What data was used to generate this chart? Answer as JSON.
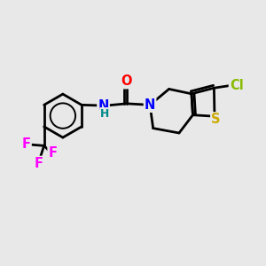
{
  "bg_color": "#e8e8e8",
  "bond_color": "#000000",
  "bond_width": 2.0,
  "atom_colors": {
    "O": "#ff0000",
    "N": "#0000ff",
    "S": "#ccaa00",
    "F": "#ff00ff",
    "Cl": "#88bb00",
    "C": "#000000",
    "H": "#008888"
  },
  "font_size_atom": 10.5,
  "xlim": [
    0,
    10
  ],
  "ylim": [
    0,
    10
  ]
}
